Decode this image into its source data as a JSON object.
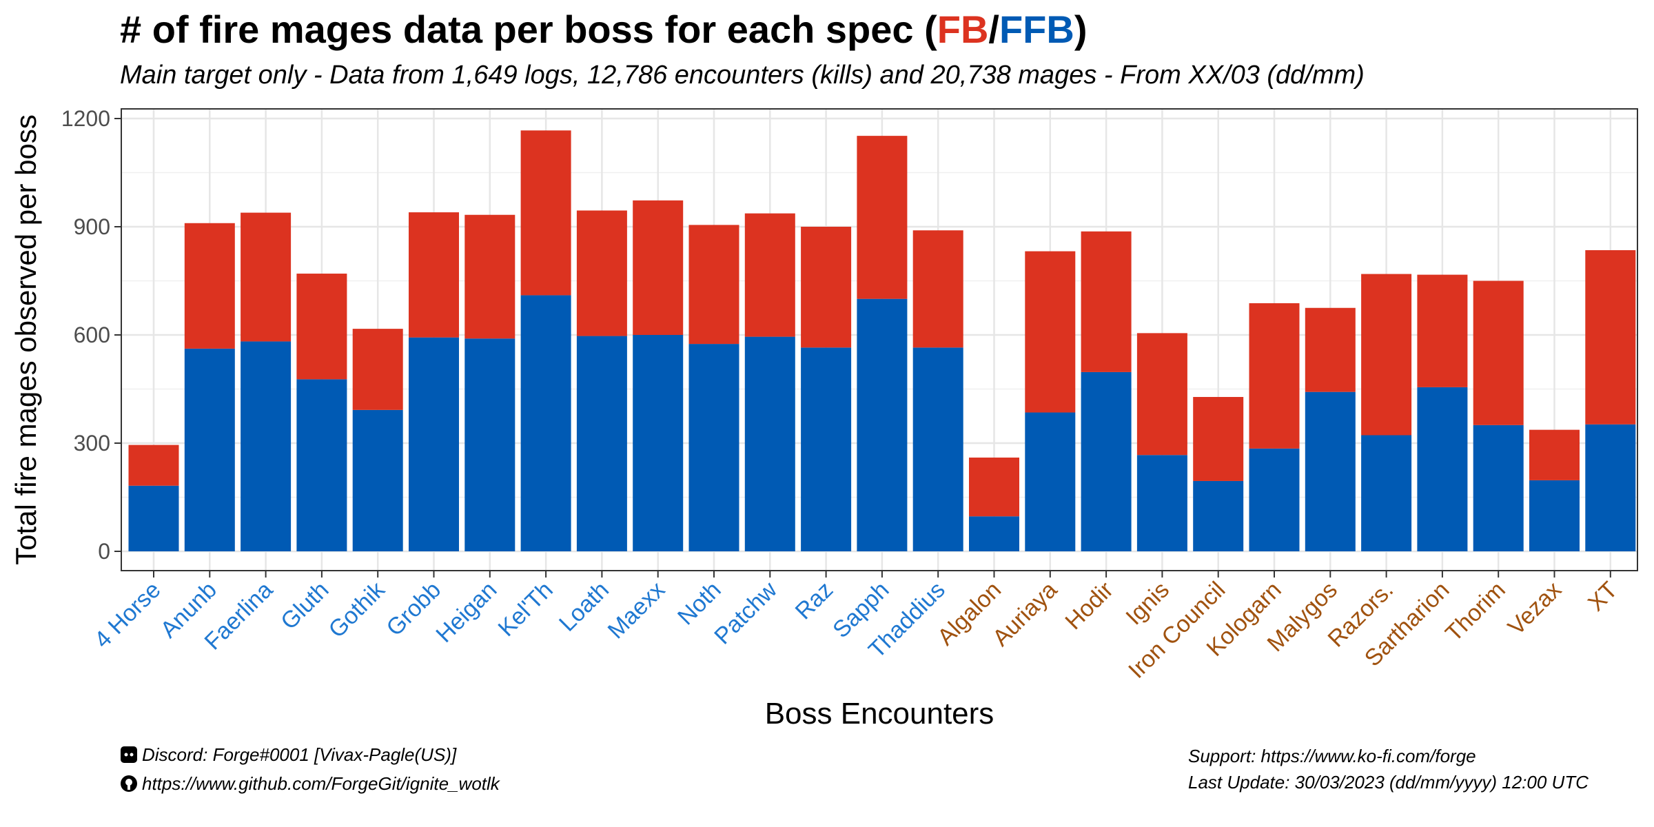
{
  "title": {
    "prefix": "# of fire mages data per boss for each spec (",
    "fb": "FB",
    "sep": "/",
    "ffb": "FFB",
    "suffix": ")"
  },
  "subtitle": "Main target only - Data from 1,649 logs, 12,786 encounters (kills) and 20,738 mages - From XX/03 (dd/mm)",
  "colors": {
    "fb": "#dc3320",
    "ffb": "#005ab4",
    "naxx_label": "#1f78d1",
    "ulduar_label": "#a0520f"
  },
  "chart_data": {
    "type": "bar",
    "stacked": true,
    "xlabel": "Boss Encounters",
    "ylabel": "Total fire mages observed per boss",
    "ylim": [
      0,
      1250
    ],
    "yticks": [
      0,
      300,
      600,
      900,
      1200
    ],
    "grid": true,
    "categories": [
      "4 Horse",
      "Anunb",
      "Faerlina",
      "Gluth",
      "Gothik",
      "Grobb",
      "Heigan",
      "Kel'Th",
      "Loath",
      "Maexx",
      "Noth",
      "Patchw",
      "Raz",
      "Sapph",
      "Thaddius",
      "Algalon",
      "Auriaya",
      "Hodir",
      "Ignis",
      "Iron Council",
      "Kologarn",
      "Malygos",
      "Razors.",
      "Sartharion",
      "Thorim",
      "Vezax",
      "XT"
    ],
    "category_groups": [
      "naxx",
      "naxx",
      "naxx",
      "naxx",
      "naxx",
      "naxx",
      "naxx",
      "naxx",
      "naxx",
      "naxx",
      "naxx",
      "naxx",
      "naxx",
      "naxx",
      "naxx",
      "ulduar",
      "ulduar",
      "ulduar",
      "ulduar",
      "ulduar",
      "ulduar",
      "ulduar",
      "ulduar",
      "ulduar",
      "ulduar",
      "ulduar",
      "ulduar"
    ],
    "series": [
      {
        "name": "FFB",
        "color": "#005ab4",
        "values": [
          182,
          562,
          582,
          477,
          392,
          593,
          590,
          710,
          597,
          600,
          575,
          595,
          565,
          700,
          565,
          97,
          385,
          497,
          267,
          195,
          285,
          442,
          322,
          455,
          350,
          197,
          352
        ]
      },
      {
        "name": "FB",
        "color": "#dc3320",
        "values": [
          113,
          348,
          357,
          293,
          225,
          347,
          343,
          457,
          348,
          373,
          330,
          342,
          335,
          452,
          325,
          163,
          447,
          390,
          338,
          233,
          403,
          233,
          447,
          312,
          400,
          140,
          483
        ]
      }
    ]
  },
  "footer": {
    "discord": "Discord: Forge#0001 [Vivax-Pagle(US)]",
    "github": "https://www.github.com/ForgeGit/ignite_wotlk",
    "support": "Support: https://www.ko-fi.com/forge",
    "last_update": "Last Update: 30/03/2023 (dd/mm/yyyy)  12:00 UTC"
  }
}
